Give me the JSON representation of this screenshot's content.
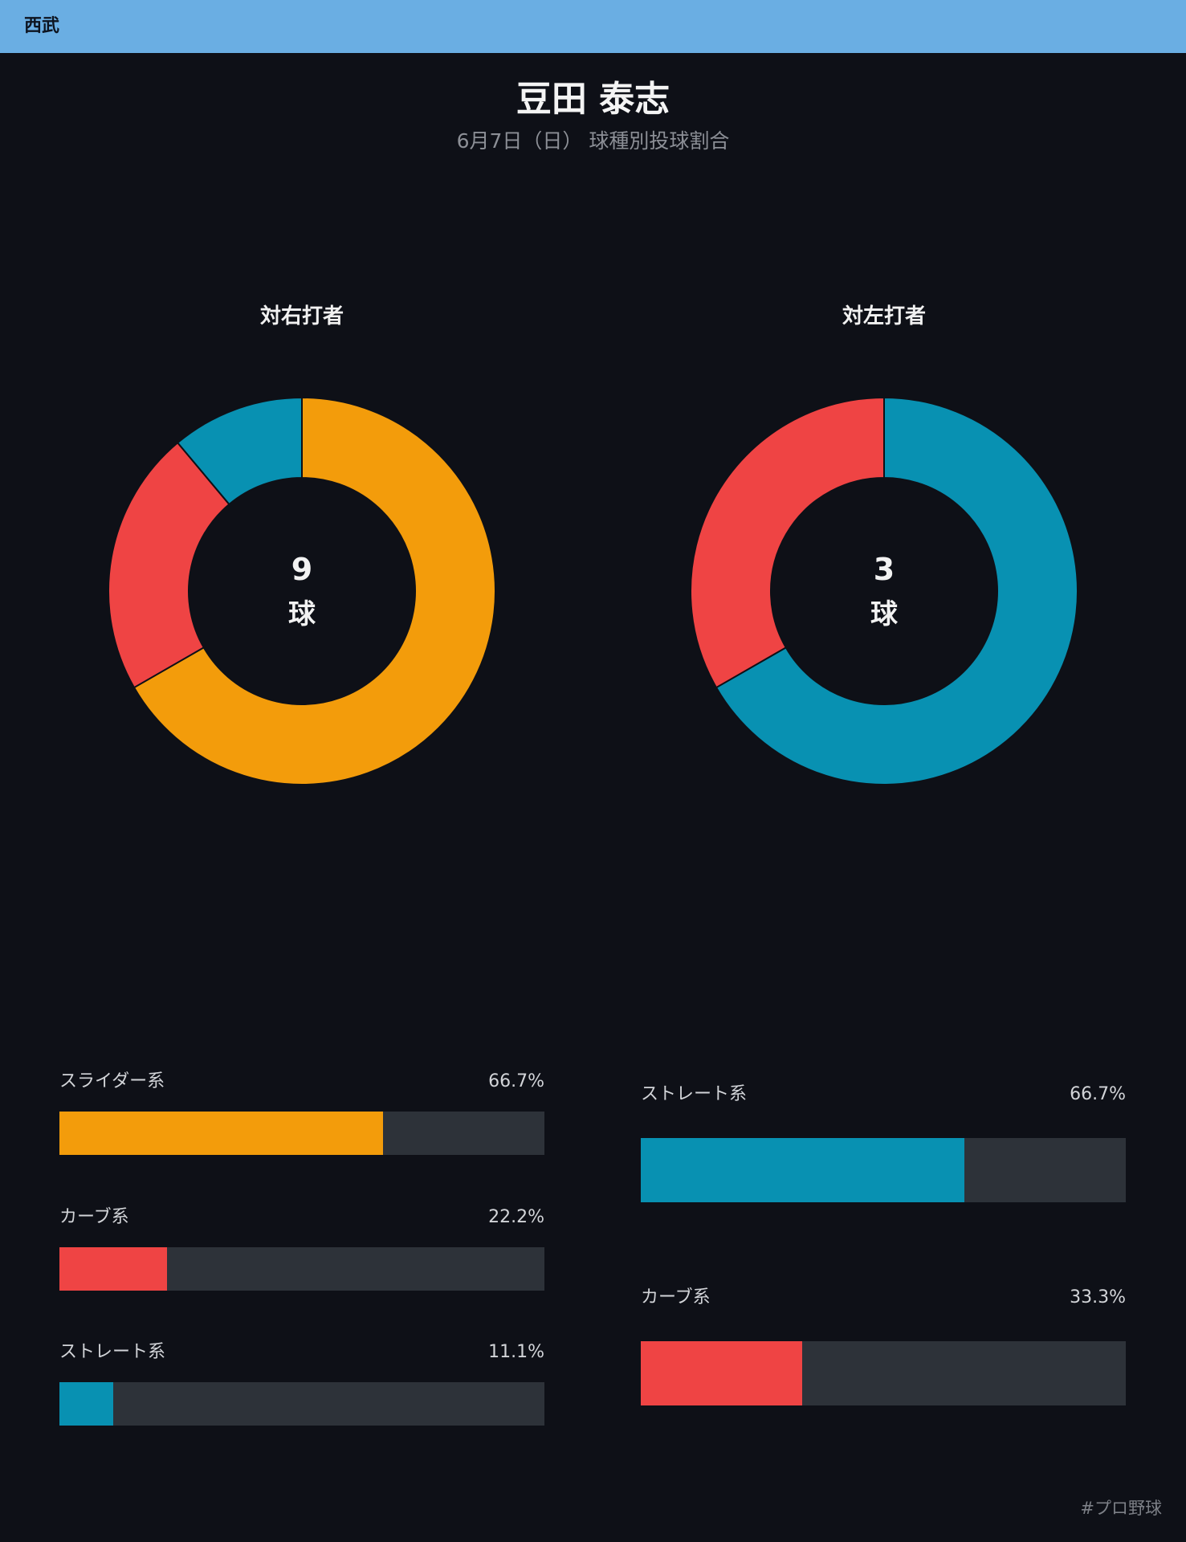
{
  "header": {
    "team": "西武"
  },
  "title": "豆田 泰志",
  "subtitle": "6月7日（日） 球種別投球割合",
  "hashtag": "#プロ野球",
  "colors": {
    "slider": "#f39c0b",
    "curve": "#ef4444",
    "straight": "#0891b2",
    "track": "#2d3239",
    "background": "#0e1017",
    "header": "#6aaee3"
  },
  "chart_data": [
    {
      "type": "pie",
      "title": "対右打者",
      "center_value": "9",
      "center_unit": "球",
      "categories": [
        "スライダー系",
        "カーブ系",
        "ストレート系"
      ],
      "values": [
        66.7,
        22.2,
        11.1
      ],
      "value_labels": [
        "66.7%",
        "22.2%",
        "11.1%"
      ],
      "colors": [
        "#f39c0b",
        "#ef4444",
        "#0891b2"
      ]
    },
    {
      "type": "pie",
      "title": "対左打者",
      "center_value": "3",
      "center_unit": "球",
      "categories": [
        "ストレート系",
        "カーブ系"
      ],
      "values": [
        66.7,
        33.3
      ],
      "value_labels": [
        "66.7%",
        "33.3%"
      ],
      "colors": [
        "#0891b2",
        "#ef4444"
      ]
    }
  ]
}
